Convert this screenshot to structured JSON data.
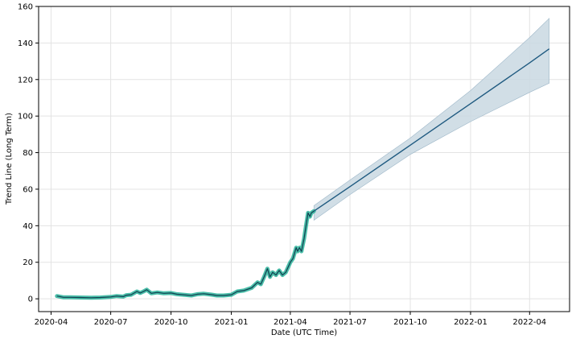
{
  "chart_data": {
    "type": "line",
    "xlabel": "Date (UTC Time)",
    "ylabel": "Trend Line (Long Term)",
    "x_ticks": [
      "2020-04",
      "2020-07",
      "2020-10",
      "2021-01",
      "2021-04",
      "2021-07",
      "2021-10",
      "2022-01",
      "2022-04"
    ],
    "y_ticks": [
      0,
      20,
      40,
      60,
      80,
      100,
      120,
      140,
      160
    ],
    "xlim": [
      "2020-03-13",
      "2022-06-01"
    ],
    "ylim": [
      -7,
      160
    ],
    "grid": true,
    "colors": {
      "actual": "#2bb39a",
      "actual_edge": "#1d7a68",
      "forecast": "#1f5a80",
      "band": "#c9d8e2",
      "band_edge": "#9fb8c9"
    },
    "series": [
      {
        "values_x": [
          "2020-04-10",
          "2020-04-20",
          "2020-05-01",
          "2020-05-15",
          "2020-06-01",
          "2020-06-15",
          "2020-07-01",
          "2020-07-10",
          "2020-07-20",
          "2020-07-25",
          "2020-08-01",
          "2020-08-10",
          "2020-08-15",
          "2020-08-20",
          "2020-08-25",
          "2020-09-01",
          "2020-09-10",
          "2020-09-20",
          "2020-10-01",
          "2020-10-10",
          "2020-10-20",
          "2020-11-01",
          "2020-11-10",
          "2020-11-20",
          "2020-12-01",
          "2020-12-10",
          "2020-12-20",
          "2021-01-01",
          "2021-01-10",
          "2021-01-20",
          "2021-02-01",
          "2021-02-10",
          "2021-02-15",
          "2021-02-20",
          "2021-02-25",
          "2021-03-01",
          "2021-03-05",
          "2021-03-10",
          "2021-03-15",
          "2021-03-20",
          "2021-03-25",
          "2021-04-01",
          "2021-04-05",
          "2021-04-10",
          "2021-04-12",
          "2021-04-15",
          "2021-04-18",
          "2021-04-22",
          "2021-04-25",
          "2021-04-28",
          "2021-05-01",
          "2021-05-03",
          "2021-05-07"
        ],
        "values_y": [
          1.5,
          0.8,
          0.8,
          0.7,
          0.6,
          0.7,
          1.0,
          1.5,
          1.2,
          2.0,
          2.2,
          4.0,
          3.2,
          4.0,
          5.0,
          3.0,
          3.5,
          3.0,
          3.2,
          2.5,
          2.2,
          1.8,
          2.5,
          2.8,
          2.3,
          1.8,
          1.8,
          2.2,
          4.0,
          4.5,
          6.0,
          9.0,
          8.0,
          12.0,
          16.5,
          12.0,
          14.5,
          13.0,
          15.5,
          13.0,
          14.5,
          20.0,
          22.0,
          28.0,
          26.0,
          28.0,
          26.0,
          33.0,
          40.0,
          47.0,
          45.0,
          47.0,
          48.0
        ]
      },
      {
        "values_x": [
          "2021-05-07",
          "2021-07-01",
          "2021-10-01",
          "2022-01-01",
          "2022-04-01",
          "2022-05-01"
        ],
        "values_y": [
          48,
          61.4,
          84.1,
          106.8,
          129.1,
          136.8
        ]
      }
    ],
    "uncertainty_band": {
      "x": [
        "2021-05-07",
        "2021-07-01",
        "2021-10-01",
        "2022-01-01",
        "2022-04-01",
        "2022-05-01"
      ],
      "lower": [
        43,
        57,
        79,
        97,
        113,
        118
      ],
      "upper": [
        51,
        65,
        88,
        114,
        143,
        153.5
      ]
    }
  }
}
